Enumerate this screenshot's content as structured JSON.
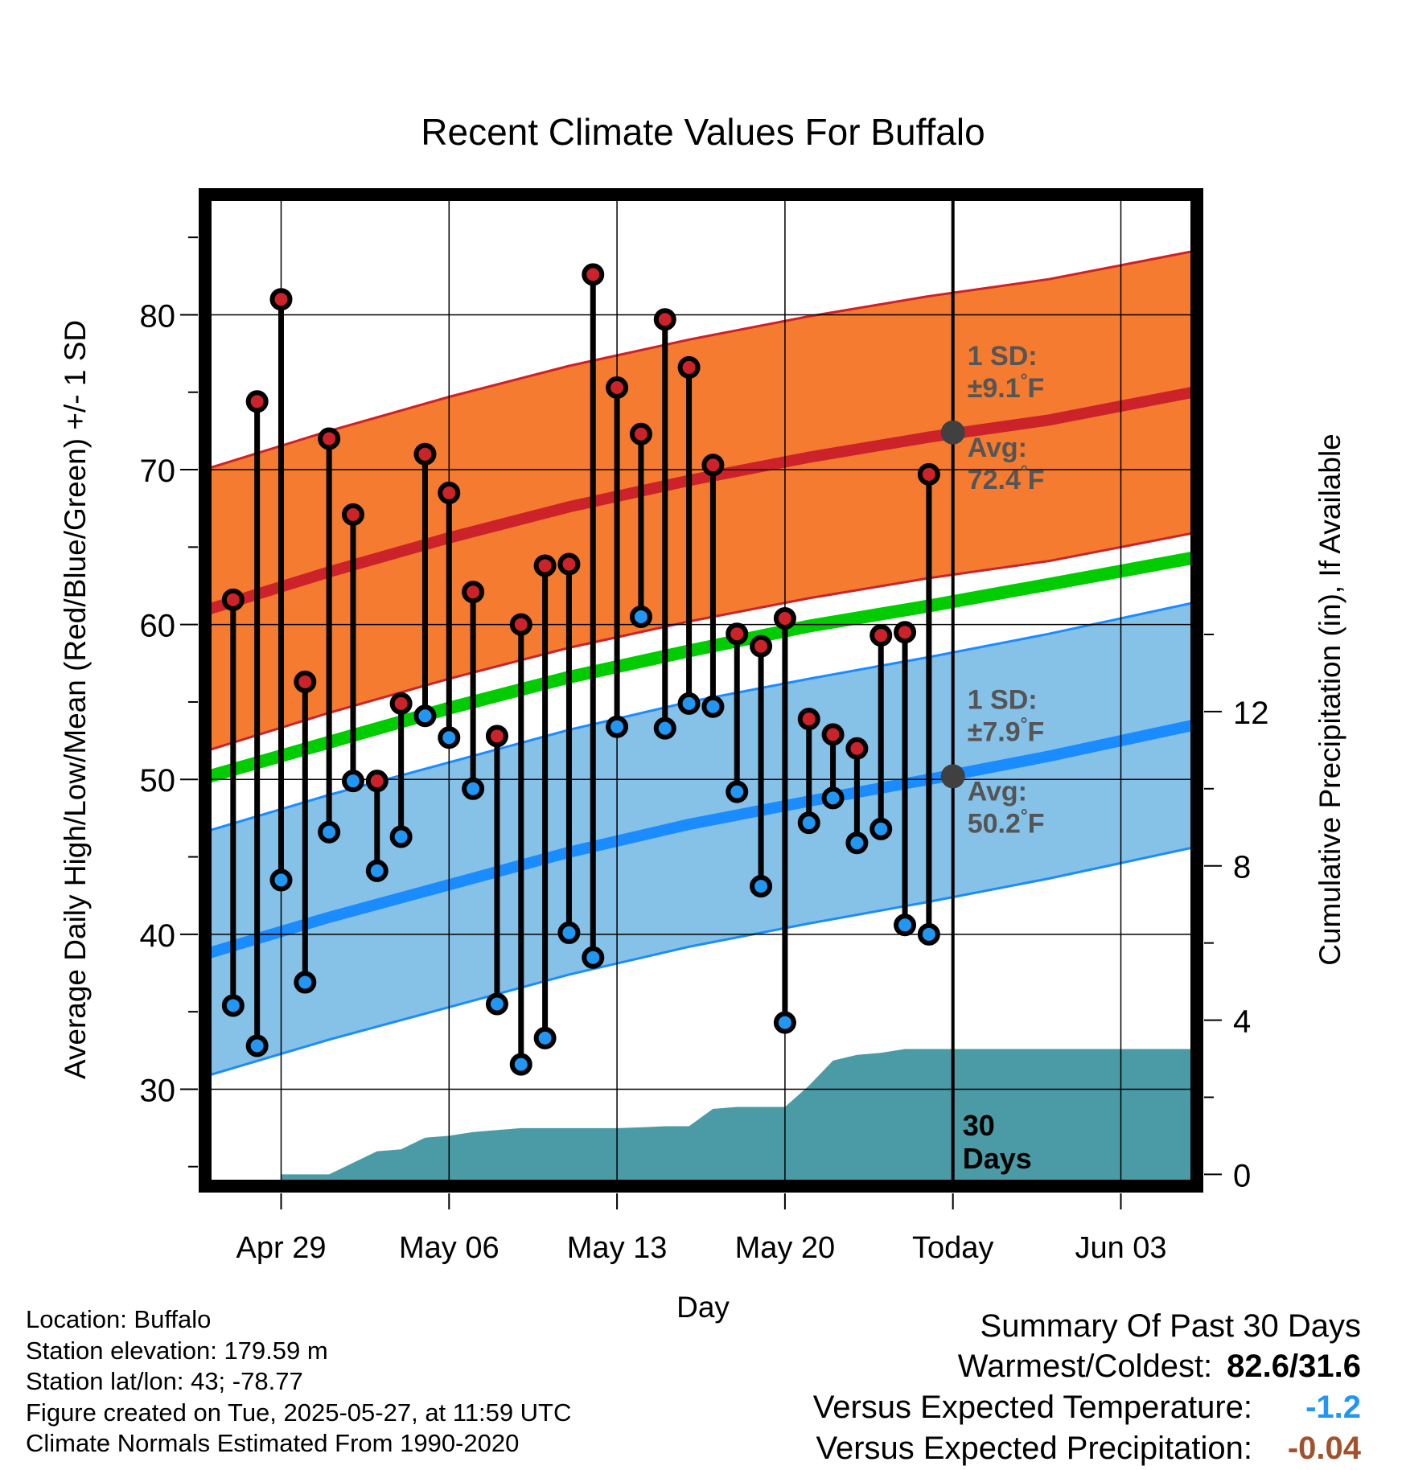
{
  "title": "Recent Climate Values For Buffalo",
  "colors": {
    "high_dot": "#cc2229",
    "low_dot": "#2196f3",
    "normal_high_band": "#f47b30",
    "normal_high_line": "#cc2229",
    "normal_low_band": "#86c1e8",
    "normal_low_line": "#1a8cff",
    "mean_line": "#00cc00",
    "precip_area": "#4a9ba6",
    "avg_marker": "#404040",
    "sd_text": "#555555"
  },
  "chart_data": {
    "type": "line",
    "title": "Recent Climate Values For Buffalo",
    "xlabel": "Day",
    "ylabel": "Average Daily High/Low/Mean (Red/Blue/Green) +/- 1 SD",
    "y2label": "Cumulative Precipitation (in), If Available",
    "ylim": [
      24,
      87.5
    ],
    "y2lim": [
      -0.2,
      25.3
    ],
    "yticks": [
      30,
      40,
      50,
      60,
      70,
      80
    ],
    "y2ticks": [
      0,
      4,
      8,
      12
    ],
    "xlim": [
      "Apr 26",
      "Jun 06"
    ],
    "xtick_labels": [
      "Apr 29",
      "May 06",
      "May 13",
      "May 20",
      "Today",
      "Jun 03"
    ],
    "grid": true,
    "dates": [
      "Apr 27",
      "Apr 28",
      "Apr 29",
      "Apr 30",
      "May 01",
      "May 02",
      "May 03",
      "May 04",
      "May 05",
      "May 06",
      "May 07",
      "May 08",
      "May 09",
      "May 10",
      "May 11",
      "May 12",
      "May 13",
      "May 14",
      "May 15",
      "May 16",
      "May 17",
      "May 18",
      "May 19",
      "May 20",
      "May 21",
      "May 22",
      "May 23",
      "May 24",
      "May 25",
      "May 26"
    ],
    "series": [
      {
        "name": "High",
        "values": [
          61.6,
          74.4,
          81.0,
          56.3,
          72.0,
          67.1,
          49.9,
          54.9,
          71.0,
          68.5,
          62.1,
          52.8,
          60.0,
          63.8,
          63.9,
          82.6,
          75.3,
          72.3,
          79.7,
          76.6,
          70.3,
          59.4,
          58.6,
          60.4,
          53.9,
          52.9,
          52.0,
          59.3,
          59.5,
          69.7
        ]
      },
      {
        "name": "Low",
        "values": [
          35.4,
          32.8,
          43.5,
          36.9,
          46.6,
          49.9,
          44.1,
          46.3,
          54.1,
          52.7,
          49.4,
          35.5,
          31.6,
          33.3,
          40.1,
          38.5,
          53.4,
          60.5,
          53.3,
          54.9,
          54.7,
          49.2,
          43.1,
          34.3,
          47.2,
          48.8,
          45.9,
          46.8,
          40.6,
          40.0
        ]
      },
      {
        "name": "Normal High",
        "x": [
          "Apr 26",
          "May 01",
          "May 06",
          "May 11",
          "May 16",
          "May 21",
          "May 26",
          "May 31",
          "Jun 06"
        ],
        "values": [
          61.0,
          63.4,
          65.6,
          67.6,
          69.3,
          70.8,
          72.1,
          73.2,
          75.0
        ]
      },
      {
        "name": "Normal Low",
        "x": [
          "Apr 26",
          "May 01",
          "May 06",
          "May 11",
          "May 16",
          "May 21",
          "May 26",
          "May 31",
          "Jun 06"
        ],
        "values": [
          38.8,
          41.1,
          43.2,
          45.3,
          47.1,
          48.6,
          50.0,
          51.5,
          53.5
        ]
      },
      {
        "name": "Normal Mean",
        "x": [
          "Apr 26",
          "May 01",
          "May 06",
          "May 11",
          "May 16",
          "May 21",
          "May 26",
          "May 31",
          "Jun 06"
        ],
        "values": [
          50.2,
          52.4,
          54.6,
          56.6,
          58.3,
          59.9,
          61.2,
          62.6,
          64.3
        ]
      },
      {
        "name": "Cumulative Precipitation (in)",
        "x": [
          "Apr 29",
          "Apr 30",
          "May 01",
          "May 02",
          "May 03",
          "May 04",
          "May 05",
          "May 06",
          "May 07",
          "May 08",
          "May 09",
          "May 10",
          "May 11",
          "May 12",
          "May 13",
          "May 14",
          "May 15",
          "May 16",
          "May 17",
          "May 18",
          "May 19",
          "May 20",
          "May 21",
          "May 22",
          "May 23",
          "May 24",
          "May 25",
          "May 26",
          "Jun 06"
        ],
        "values": [
          0,
          0,
          0,
          0.3,
          0.6,
          0.65,
          0.95,
          1.0,
          1.1,
          1.15,
          1.2,
          1.2,
          1.2,
          1.2,
          1.2,
          1.22,
          1.25,
          1.25,
          1.7,
          1.75,
          1.75,
          1.75,
          2.3,
          2.95,
          3.1,
          3.15,
          3.25,
          3.25,
          3.25
        ]
      }
    ],
    "high_sd": "±9.1°F",
    "low_sd": "±7.9°F",
    "annotations": [
      "30 Days"
    ]
  },
  "annotations": {
    "high": {
      "sd_label": "1 SD:",
      "sd_value": "±9.1",
      "avg_label": "Avg:",
      "avg_value": "72.4",
      "unit": "°F",
      "avg_numeric": 72.4
    },
    "low": {
      "sd_label": "1 SD:",
      "sd_value": "±7.9",
      "avg_label": "Avg:",
      "avg_value": "50.2",
      "unit": "°F",
      "avg_numeric": 50.2
    },
    "days_line1": "30",
    "days_line2": "Days"
  },
  "info": {
    "location": "Location: Buffalo",
    "elevation": "Station elevation: 179.59 m",
    "latlon": "Station lat/lon: 43; -78.77",
    "created": "Figure created on Tue, 2025-05-27, at 11:59 UTC",
    "normals": "Climate Normals Estimated From 1990-2020"
  },
  "summary": {
    "title": "Summary Of Past 30 Days",
    "warm_cold_label": "Warmest/Coldest:",
    "warm_cold_value": "82.6/31.6",
    "temp_label": "Versus Expected Temperature:",
    "temp_value": "-1.2",
    "precip_label": "Versus Expected Precipitation:",
    "precip_value": "-0.04"
  }
}
